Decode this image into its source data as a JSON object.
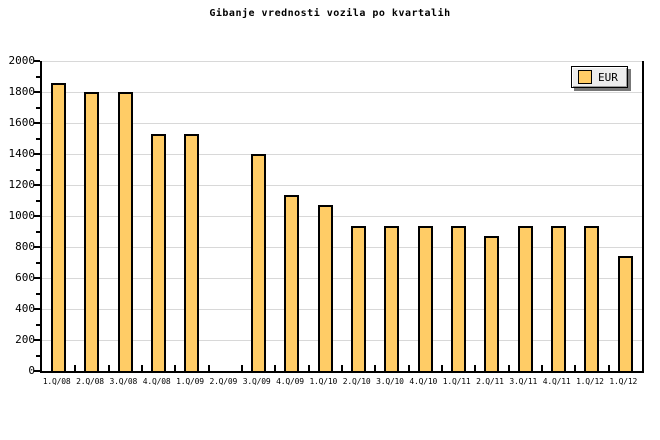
{
  "title": "Gibanje vrednosti vozila po kvartalih",
  "legend": {
    "label": "EUR"
  },
  "colors": {
    "bar_fill": "#FFCC66",
    "bar_border": "#000000",
    "grid": "#D8D8D8",
    "axis": "#000000",
    "legend_bg": "#EDEDED"
  },
  "chart_data": {
    "type": "bar",
    "title": "Gibanje vrednosti vozila po kvartalih",
    "series_name": "EUR",
    "categories": [
      "1.Q/08",
      "2.Q/08",
      "3.Q/08",
      "4.Q/08",
      "1.Q/09",
      "2.Q/09",
      "3.Q/09",
      "4.Q/09",
      "1.Q/10",
      "2.Q/10",
      "3.Q/10",
      "4.Q/10",
      "1.Q/11",
      "2.Q/11",
      "3.Q/11",
      "4.Q/11",
      "1.Q/12",
      "1.Q/12"
    ],
    "values": [
      1845,
      1785,
      1785,
      1515,
      1515,
      0,
      1385,
      1125,
      1055,
      925,
      925,
      925,
      925,
      860,
      925,
      925,
      925,
      730
    ],
    "xlabel": "",
    "ylabel": "",
    "ylim": [
      0,
      2000
    ],
    "yticks": [
      0,
      200,
      400,
      600,
      800,
      1000,
      1200,
      1400,
      1600,
      1800,
      2000
    ],
    "y_minor_ticks": [
      100,
      300,
      500,
      700,
      900,
      1100,
      1300,
      1500,
      1700,
      1900
    ],
    "grid": "horizontal-major",
    "legend_position": "top-right"
  }
}
